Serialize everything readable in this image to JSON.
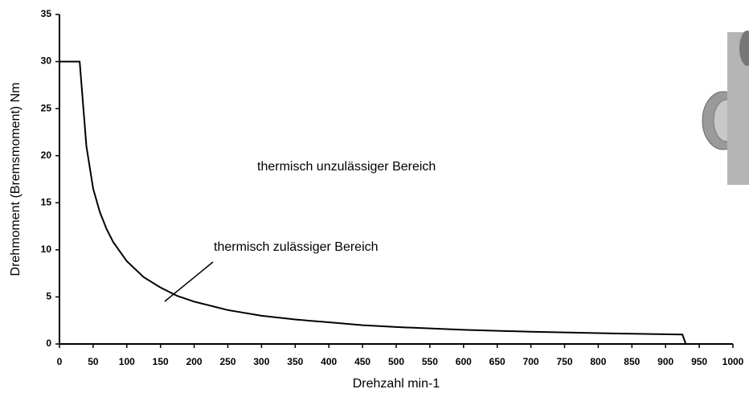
{
  "chart_data": {
    "type": "line",
    "x_label": "Drehzahl min-1",
    "y_label": "Drehmoment (Bremsmoment) Nm",
    "annotations": [
      "thermisch unzulässiger Bereich",
      "thermisch zulässiger Bereich"
    ],
    "x": [
      0,
      30,
      40,
      50,
      60,
      70,
      80,
      100,
      125,
      150,
      175,
      200,
      250,
      300,
      350,
      400,
      450,
      500,
      600,
      700,
      800,
      925,
      930
    ],
    "series": [
      {
        "color": "#000000",
        "values": [
          30,
          30,
          21,
          16.5,
          14,
          12.2,
          10.8,
          8.8,
          7.1,
          6,
          5.1,
          4.5,
          3.6,
          3,
          2.6,
          2.3,
          2,
          1.8,
          1.5,
          1.3,
          1.15,
          1,
          0
        ]
      }
    ],
    "xlim": [
      0,
      1000
    ],
    "xticks": [
      0,
      50,
      100,
      150,
      200,
      250,
      300,
      350,
      400,
      450,
      500,
      550,
      600,
      650,
      700,
      750,
      800,
      850,
      900,
      950,
      1000
    ],
    "ylim": [
      0,
      35
    ],
    "yticks": [
      0,
      5,
      10,
      15,
      20,
      25,
      30,
      35
    ]
  }
}
